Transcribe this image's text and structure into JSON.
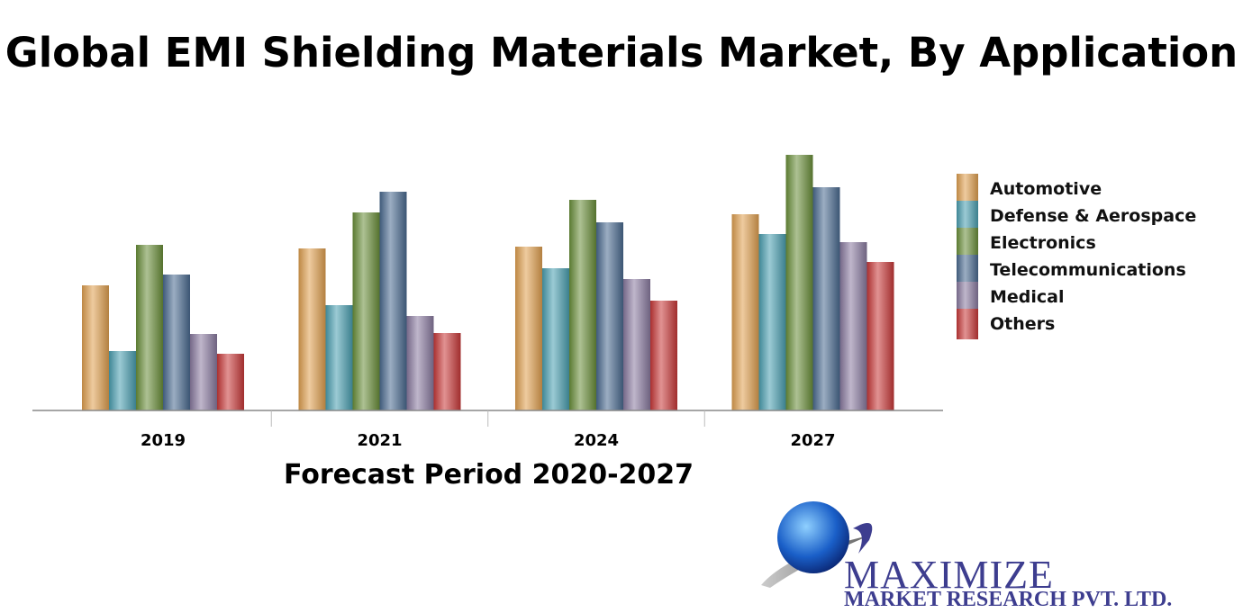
{
  "title": "Global EMI Shielding Materials Market, By Application",
  "chart_data": {
    "type": "bar",
    "title": "Global EMI Shielding Materials Market, By Application",
    "xlabel": "Forecast Period 2020-2027",
    "ylabel": "",
    "categories": [
      "2019",
      "2021",
      "2024",
      "2027"
    ],
    "series": [
      {
        "name": "Automotive",
        "color": "#e0a050",
        "values": [
          139,
          180,
          182,
          218
        ]
      },
      {
        "name": "Defense & Aerospace",
        "color": "#4a9fb0",
        "values": [
          66,
          117,
          158,
          196
        ]
      },
      {
        "name": "Electronics",
        "color": "#6a8f3a",
        "values": [
          184,
          220,
          234,
          284
        ]
      },
      {
        "name": "Telecommunications",
        "color": "#4a6a90",
        "values": [
          151,
          243,
          209,
          248
        ]
      },
      {
        "name": "Medical",
        "color": "#8a7aa0",
        "values": [
          85,
          105,
          146,
          187
        ]
      },
      {
        "name": "Others",
        "color": "#c83838",
        "values": [
          63,
          86,
          122,
          165
        ]
      }
    ],
    "ylim": [
      0,
      290
    ],
    "y_axis_shown": false,
    "grid": false,
    "legend": "right"
  },
  "logo": {
    "name": "MAXIMIZE",
    "sub": "MARKET RESEARCH PVT. LTD."
  }
}
